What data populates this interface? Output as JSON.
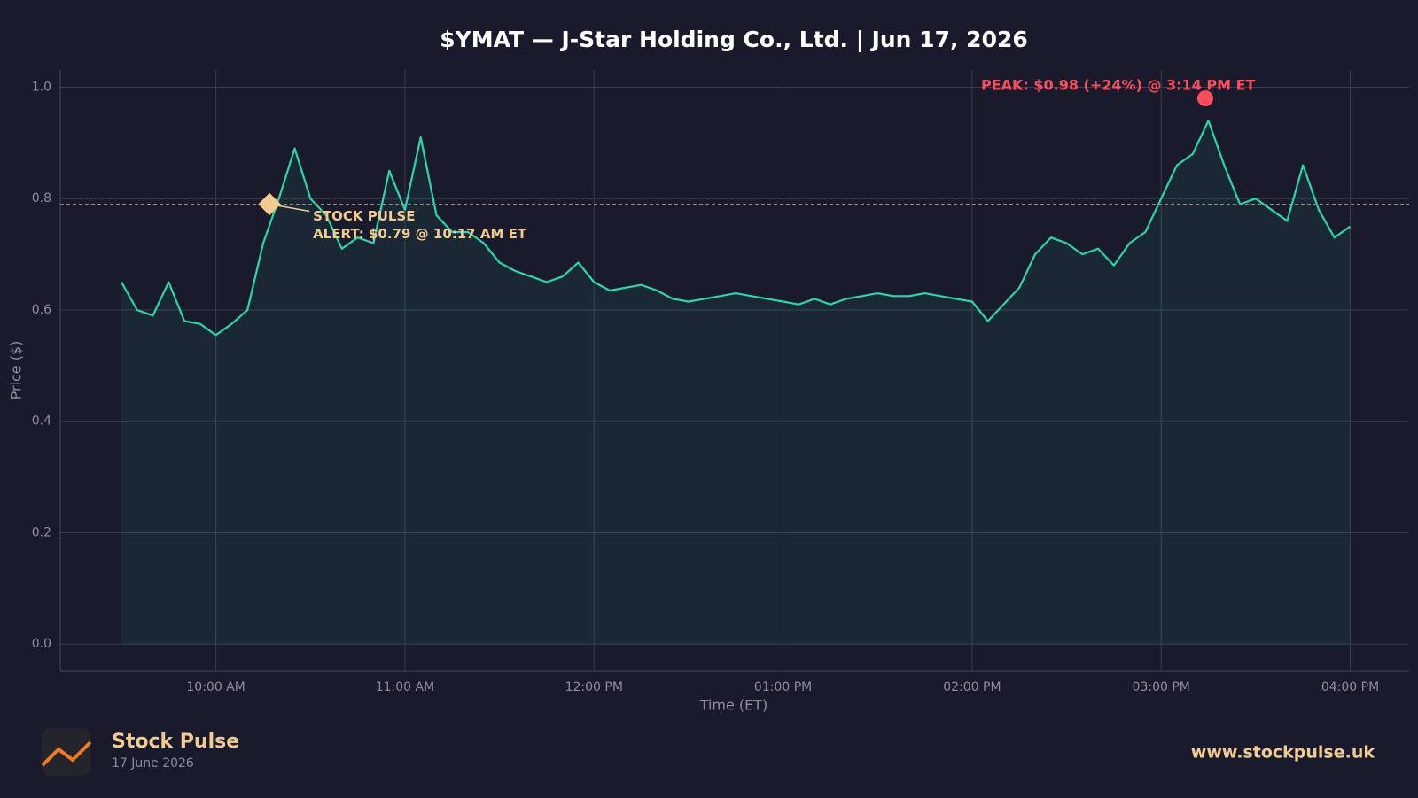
{
  "chart_data": {
    "type": "line",
    "title": "$YMAT — J-Star Holding Co., Ltd.  |  Jun 17, 2026",
    "x_label": "Time (ET)",
    "y_label": "Price ($)",
    "x": [
      570,
      575,
      580,
      585,
      590,
      595,
      600,
      605,
      610,
      615,
      620,
      625,
      630,
      635,
      640,
      645,
      650,
      655,
      660,
      665,
      670,
      675,
      680,
      685,
      690,
      695,
      700,
      705,
      710,
      715,
      720,
      725,
      730,
      735,
      740,
      745,
      750,
      755,
      760,
      765,
      770,
      775,
      780,
      785,
      790,
      795,
      800,
      805,
      810,
      815,
      820,
      825,
      830,
      835,
      840,
      845,
      850,
      855,
      860,
      865,
      870,
      875,
      880,
      885,
      890,
      895,
      900,
      905,
      910,
      915,
      920,
      925,
      930,
      935,
      940,
      945,
      950,
      955,
      960
    ],
    "values": [
      0.65,
      0.6,
      0.59,
      0.65,
      0.58,
      0.575,
      0.555,
      0.575,
      0.6,
      0.72,
      0.8,
      0.89,
      0.8,
      0.77,
      0.71,
      0.73,
      0.72,
      0.85,
      0.78,
      0.91,
      0.77,
      0.74,
      0.74,
      0.72,
      0.685,
      0.67,
      0.66,
      0.65,
      0.66,
      0.685,
      0.65,
      0.635,
      0.64,
      0.645,
      0.635,
      0.62,
      0.615,
      0.62,
      0.625,
      0.63,
      0.625,
      0.62,
      0.615,
      0.61,
      0.62,
      0.61,
      0.62,
      0.625,
      0.63,
      0.625,
      0.625,
      0.63,
      0.625,
      0.62,
      0.615,
      0.58,
      0.61,
      0.64,
      0.7,
      0.73,
      0.72,
      0.7,
      0.71,
      0.68,
      0.72,
      0.74,
      0.8,
      0.86,
      0.88,
      0.94,
      0.86,
      0.79,
      0.8,
      0.78,
      0.76,
      0.86,
      0.78,
      0.73,
      0.75
    ],
    "color": "#2bd6a9",
    "xlim": [
      550.6,
      978.7
    ],
    "ylim": [
      -0.049,
      1.031
    ],
    "xticks": [
      {
        "value": 600,
        "label": "10:00 AM"
      },
      {
        "value": 660,
        "label": "11:00 AM"
      },
      {
        "value": 720,
        "label": "12:00 PM"
      },
      {
        "value": 780,
        "label": "01:00 PM"
      },
      {
        "value": 840,
        "label": "02:00 PM"
      },
      {
        "value": 900,
        "label": "03:00 PM"
      },
      {
        "value": 960,
        "label": "04:00 PM"
      }
    ],
    "yticks": [
      {
        "value": 0,
        "label": "0.0"
      },
      0.2,
      0.4,
      0.6,
      0.8,
      {
        "value": 1,
        "label": "1.0"
      }
    ],
    "grid": true,
    "annotations": [
      {
        "kind": "alert",
        "lines": [
          "STOCK PULSE",
          "ALERT: $0.79 @ 10:17 AM ET"
        ],
        "x": 617,
        "y": 0.79,
        "color": "#f2cc8f"
      },
      {
        "kind": "peak",
        "lines": [
          "PEAK: $0.98 (+24%) @ 3:14 PM ET"
        ],
        "x": 914,
        "y": 0.98,
        "color": "#ff4d5e"
      }
    ]
  },
  "footer": {
    "brand": "Stock Pulse",
    "date": "17 June 2026",
    "url": "www.stockpulse.uk"
  }
}
